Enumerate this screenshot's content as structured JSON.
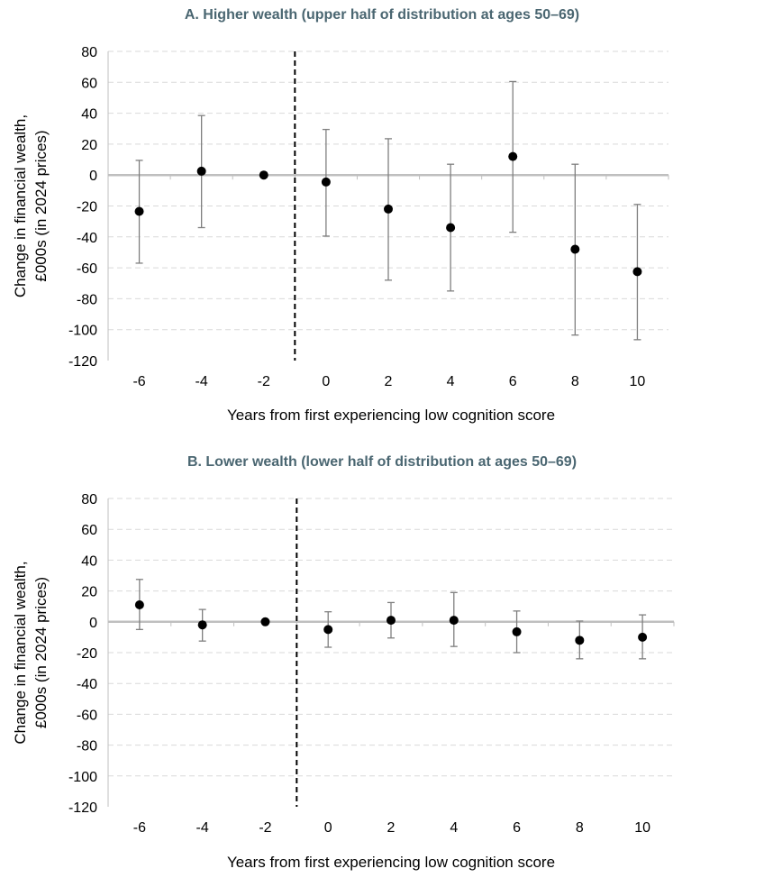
{
  "chart_data": [
    {
      "type": "scatter",
      "title": "A. Higher wealth (upper half of distribution at ages 50–69)",
      "xlabel": "Years from first experiencing low cognition score",
      "ylabel_lines": [
        "Change in financial wealth,",
        "£000s (in 2024 prices)"
      ],
      "ylim": [
        -120,
        80
      ],
      "yticks": [
        80,
        60,
        40,
        20,
        0,
        -20,
        -40,
        -60,
        -80,
        -100,
        -120
      ],
      "categories": [
        "-6",
        "-4",
        "-2",
        "0",
        "2",
        "4",
        "6",
        "8",
        "10"
      ],
      "reference_line_between": [
        "-2",
        "0"
      ],
      "grid": true,
      "values": [
        -23.5,
        2.5,
        0,
        -4.5,
        -22,
        -34,
        12,
        -48,
        -62.5
      ],
      "ci_low": [
        -57,
        -34,
        0,
        -39.5,
        -68,
        -75,
        -37,
        -103.5,
        -106.5
      ],
      "ci_high": [
        9.5,
        38.5,
        0,
        29.5,
        23.5,
        7,
        60.5,
        7,
        -19
      ]
    },
    {
      "type": "scatter",
      "title": "B. Lower wealth (lower half of distribution at ages 50–69)",
      "xlabel": "Years from first experiencing low cognition score",
      "ylabel_lines": [
        "Change in financial wealth,",
        "£000s (in 2024 prices)"
      ],
      "ylim": [
        -120,
        80
      ],
      "yticks": [
        80,
        60,
        40,
        20,
        0,
        -20,
        -40,
        -60,
        -80,
        -100,
        -120
      ],
      "categories": [
        "-6",
        "-4",
        "-2",
        "0",
        "2",
        "4",
        "6",
        "8",
        "10"
      ],
      "reference_line_between": [
        "-2",
        "0"
      ],
      "grid": true,
      "values": [
        11,
        -2,
        0,
        -5,
        1,
        1,
        -6.5,
        -12,
        -10
      ],
      "ci_low": [
        -5,
        -12.5,
        0,
        -16.5,
        -10.5,
        -16,
        -20,
        -24,
        -24
      ],
      "ci_high": [
        27.5,
        8,
        0,
        6.5,
        12.5,
        19,
        7,
        0.5,
        4.5
      ]
    }
  ]
}
